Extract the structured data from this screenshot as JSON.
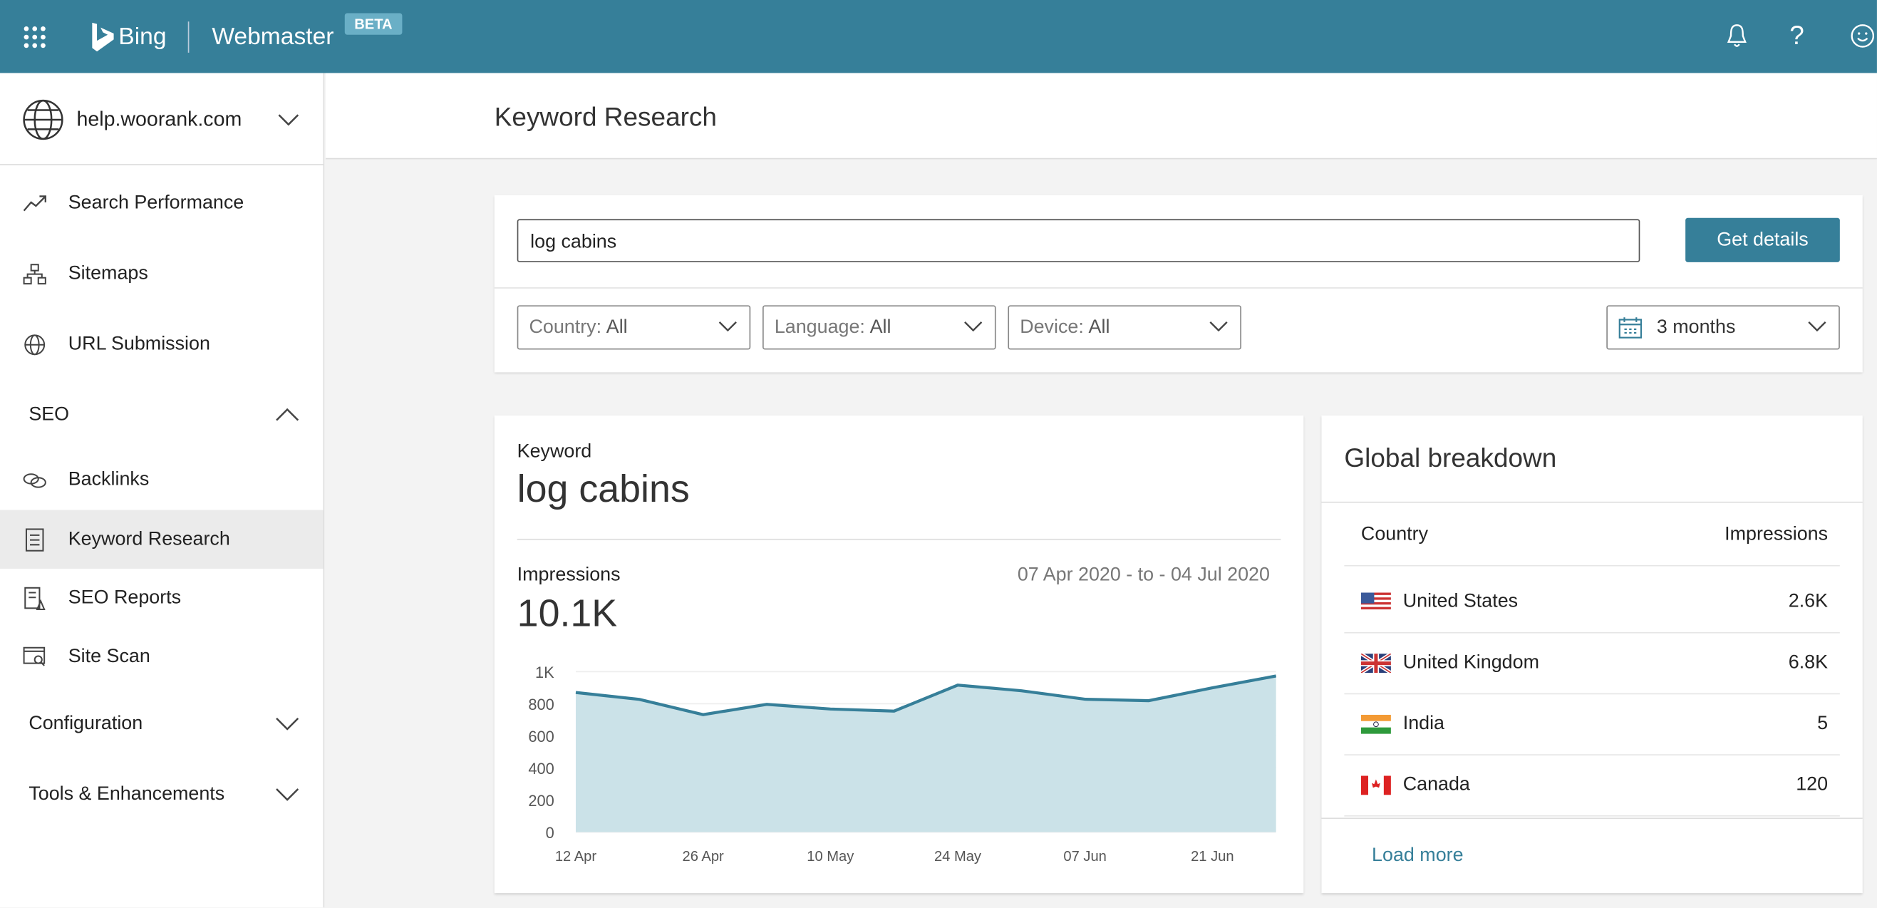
{
  "header": {
    "app": "Bing",
    "product": "Webmaster",
    "badge": "BETA",
    "icons": [
      "apps-grid-icon",
      "bell-icon",
      "help-icon",
      "smiley-feedback-icon"
    ],
    "color": "#367f99"
  },
  "site": {
    "name": "help.woorank.com"
  },
  "sidebar": {
    "items": [
      {
        "label": "Search Performance",
        "icon": "trend-icon"
      },
      {
        "label": "Sitemaps",
        "icon": "sitemap-icon"
      },
      {
        "label": "URL Submission",
        "icon": "globe-icon"
      },
      {
        "label": "SEO",
        "section": true,
        "expanded": true
      },
      {
        "label": "Backlinks",
        "icon": "link-icon"
      },
      {
        "label": "Keyword Research",
        "icon": "document-icon",
        "selected": true
      },
      {
        "label": "SEO Reports",
        "icon": "report-icon"
      },
      {
        "label": "Site Scan",
        "icon": "scan-icon"
      },
      {
        "label": "Configuration",
        "section": true,
        "expanded": false
      },
      {
        "label": "Tools & Enhancements",
        "section": true,
        "expanded": false
      }
    ]
  },
  "page": {
    "title": "Keyword Research"
  },
  "search": {
    "value": "log cabins",
    "button": "Get details",
    "filters": [
      {
        "label": "Country:",
        "value": "All"
      },
      {
        "label": "Language:",
        "value": "All"
      },
      {
        "label": "Device:",
        "value": "All"
      }
    ],
    "range": "3 months"
  },
  "keyword": {
    "label": "Keyword",
    "value": "log cabins",
    "metric": "Impressions",
    "total": "10.1K",
    "date_range": "07 Apr 2020 - to - 04 Jul 2020"
  },
  "chart_data": {
    "type": "area",
    "x": [
      "12 Apr",
      "19 Apr",
      "26 Apr",
      "03 May",
      "10 May",
      "17 May",
      "24 May",
      "31 May",
      "07 Jun",
      "14 Jun",
      "21 Jun",
      "28 Jun"
    ],
    "values": [
      870,
      827,
      732,
      796,
      767,
      754,
      916,
      881,
      828,
      819,
      899,
      973
    ],
    "xticks": [
      "12 Apr",
      "26 Apr",
      "10 May",
      "24 May",
      "07 Jun",
      "21 Jun"
    ],
    "yticks": [
      "0",
      "200",
      "400",
      "600",
      "800",
      "1K"
    ],
    "ylim": [
      0,
      1000
    ],
    "grid": true,
    "color": "#367f99",
    "fill": "#cbe2e8"
  },
  "global": {
    "title": "Global breakdown",
    "col_country": "Country",
    "col_impressions": "Impressions",
    "rows": [
      {
        "country": "United States",
        "value": "2.6K"
      },
      {
        "country": "United Kingdom",
        "value": "6.8K"
      },
      {
        "country": "India",
        "value": "5"
      },
      {
        "country": "Canada",
        "value": "120"
      }
    ],
    "load_more": "Load more"
  }
}
